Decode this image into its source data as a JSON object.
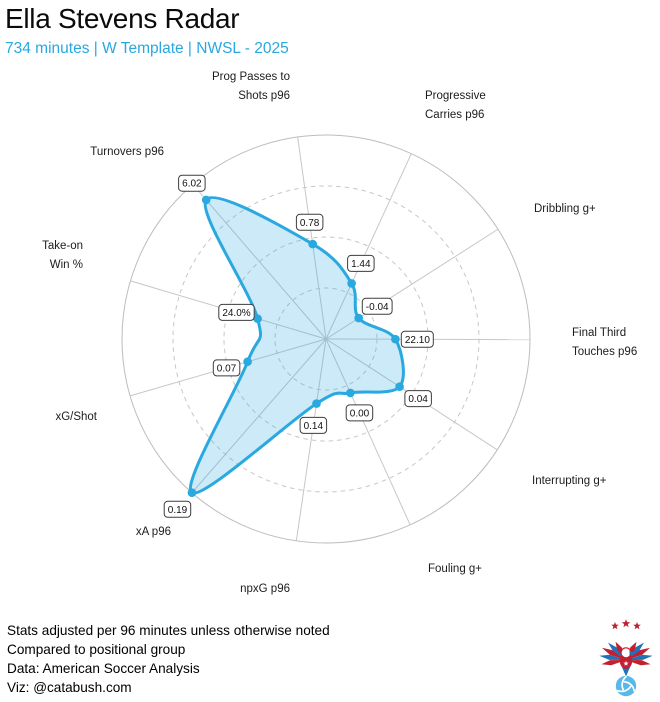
{
  "header": {
    "title": "Ella Stevens Radar",
    "subtitle": "734 minutes | W Template | NWSL - 2025"
  },
  "chart_data": {
    "type": "radar",
    "title": "Ella Stevens Radar",
    "subtitle": "734 minutes | W Template | NWSL - 2025",
    "start_angle_deg": -8,
    "rings_pct": [
      25,
      50,
      75,
      100
    ],
    "grid": "inner rings dashed, outer ring and spokes solid",
    "axes": [
      {
        "label": "Prog Passes to Shots p96",
        "label_lines": [
          "Prog Passes to",
          "Shots p96"
        ],
        "value": 0.78,
        "value_label": "0.78",
        "radius_pct": 47
      },
      {
        "label": "Progressive Carries p96",
        "label_lines": [
          "Progressive",
          "Carries p96"
        ],
        "value": 1.44,
        "value_label": "1.44",
        "radius_pct": 30
      },
      {
        "label": "Dribbling g+",
        "label_lines": [
          "Dribbling g+"
        ],
        "value": -0.04,
        "value_label": "-0.04",
        "radius_pct": 19
      },
      {
        "label": "Final Third Touches p96",
        "label_lines": [
          "Final Third",
          "Touches p96"
        ],
        "value": 22.1,
        "value_label": "22.10",
        "radius_pct": 34
      },
      {
        "label": "Interrupting g+",
        "label_lines": [
          "Interrupting g+"
        ],
        "value": 0.04,
        "value_label": "0.04",
        "radius_pct": 43
      },
      {
        "label": "Fouling g+",
        "label_lines": [
          "Fouling g+"
        ],
        "value": 0.0,
        "value_label": "0.00",
        "radius_pct": 29
      },
      {
        "label": "npxG p96",
        "label_lines": [
          "npxG p96"
        ],
        "value": 0.14,
        "value_label": "0.14",
        "radius_pct": 32
      },
      {
        "label": "xA p96",
        "label_lines": [
          "xA p96"
        ],
        "value": 0.19,
        "value_label": "0.19",
        "radius_pct": 100
      },
      {
        "label": "xG/Shot",
        "label_lines": [
          "xG/Shot"
        ],
        "value": 0.07,
        "value_label": "0.07",
        "radius_pct": 40
      },
      {
        "label": "Take-on Win %",
        "label_lines": [
          "Take-on",
          "Win %"
        ],
        "value": 24.0,
        "value_label": "24.0%",
        "radius_pct": 35
      },
      {
        "label": "Turnovers p96",
        "label_lines": [
          "Turnovers p96"
        ],
        "value": 6.02,
        "value_label": "6.02",
        "radius_pct": 90
      }
    ],
    "colors": {
      "accent": "#2AA8E0",
      "fill_opacity": 0.24,
      "grid_line": "#C7C7C7",
      "outer_ring": "#BDBDBD",
      "badge_border": "#3D3D3D",
      "label_text": "#1C1C1C",
      "subtitle_text": "#29A8E0"
    }
  },
  "footer": {
    "lines": [
      "Stats adjusted per 96 minutes unless otherwise noted",
      "Compared to positional group",
      "Data: American Soccer Analysis",
      "Viz: @catabush.com"
    ]
  },
  "logo": {
    "name": "american-soccer-analysis-eagle-crest",
    "colors": {
      "red": "#C21F30",
      "blue": "#2272B5",
      "ball": "#58B8E8",
      "white": "#FFFFFF"
    }
  }
}
